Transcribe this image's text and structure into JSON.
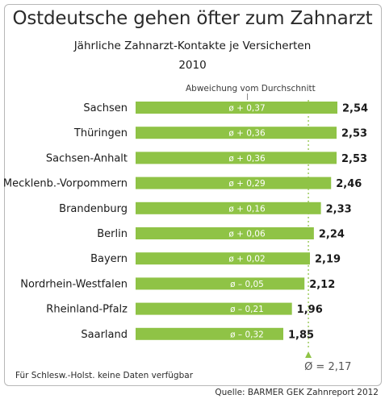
{
  "title": "Ostdeutsche gehen öfter zum Zahnarzt",
  "subtitle": "Jährliche Zahnarzt-Kontakte je Versicherten",
  "year": "2010",
  "deviation_label": "Abweichung vom Durchschnitt",
  "average_label": "Ø = 2,17",
  "note": "Für Schlesw.-Holst. keine Daten verfügbar",
  "source": "Quelle: BARMER GEK Zahnreport 2012",
  "colors": {
    "bar": "#8fc346",
    "average_line": "#8fc346",
    "text": "#1a1a1a"
  },
  "chart_data": {
    "type": "bar",
    "orientation": "horizontal",
    "average": 2.17,
    "xlim": [
      0,
      2.6
    ],
    "categories": [
      "Sachsen",
      "Thüringen",
      "Sachsen-Anhalt",
      "Mecklenb.-Vorpommern",
      "Brandenburg",
      "Berlin",
      "Bayern",
      "Nordrhein-Westfalen",
      "Rheinland-Pfalz",
      "Saarland"
    ],
    "values": [
      2.54,
      2.53,
      2.53,
      2.46,
      2.33,
      2.24,
      2.19,
      2.12,
      1.96,
      1.85
    ],
    "value_labels": [
      "2,54",
      "2,53",
      "2,53",
      "2,46",
      "2,33",
      "2,24",
      "2,19",
      "2,12",
      "1,96",
      "1,85"
    ],
    "deviation_labels": [
      "ø + 0,37",
      "ø + 0,36",
      "ø + 0,36",
      "ø + 0,29",
      "ø + 0,16",
      "ø + 0,06",
      "ø + 0,02",
      "ø – 0,05",
      "ø – 0,21",
      "ø – 0,32"
    ]
  }
}
